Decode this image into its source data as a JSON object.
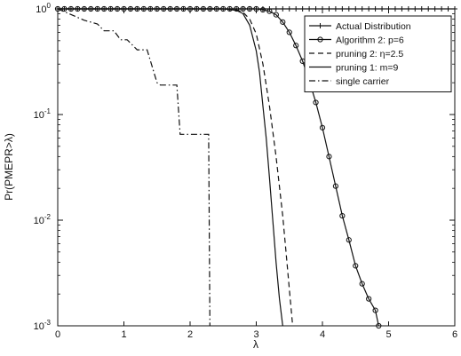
{
  "chart_data": {
    "type": "line",
    "xlabel": "λ",
    "ylabel": "Pr(PMEPR>λ)",
    "xlim": [
      0,
      6
    ],
    "ylim": [
      0.001,
      1
    ],
    "yscale": "log",
    "grid": false,
    "legend_position": "top-right",
    "x_ticks": [
      {
        "value": 0,
        "label": "0"
      },
      {
        "value": 1,
        "label": "1"
      },
      {
        "value": 2,
        "label": "2"
      },
      {
        "value": 3,
        "label": "3"
      },
      {
        "value": 4,
        "label": "4"
      },
      {
        "value": 5,
        "label": "5"
      },
      {
        "value": 6,
        "label": "6"
      }
    ],
    "y_ticks": [
      {
        "value": 1,
        "base": "10",
        "exp": "0"
      },
      {
        "value": 0.1,
        "base": "10",
        "exp": "-1"
      },
      {
        "value": 0.01,
        "base": "10",
        "exp": "-2"
      },
      {
        "value": 0.001,
        "base": "10",
        "exp": "-3"
      }
    ],
    "series": [
      {
        "name": "Actual Distribution",
        "style": "solid",
        "marker": "plus",
        "color": "#111111",
        "x": [
          0,
          0.1,
          0.2,
          0.3,
          0.4,
          0.5,
          0.6,
          0.7,
          0.8,
          0.9,
          1.0,
          1.1,
          1.2,
          1.3,
          1.4,
          1.5,
          1.6,
          1.7,
          1.8,
          1.9,
          2.0,
          2.1,
          2.2,
          2.3,
          2.4,
          2.5,
          2.6,
          2.7,
          2.8,
          2.9,
          3.0,
          3.1,
          3.2,
          3.3,
          3.4,
          3.5,
          3.6,
          3.7,
          3.8,
          3.9,
          4.0,
          4.1,
          4.2,
          4.3,
          4.4,
          4.5,
          4.6,
          4.7,
          4.8,
          4.9,
          5.0,
          5.1,
          5.2,
          5.3,
          5.4,
          5.5,
          5.6,
          5.7,
          5.8,
          5.9,
          6.0
        ],
        "y": [
          1,
          1,
          1,
          1,
          1,
          1,
          1,
          1,
          1,
          1,
          1,
          1,
          1,
          1,
          1,
          1,
          1,
          1,
          1,
          1,
          1,
          1,
          1,
          1,
          1,
          1,
          1,
          1,
          1,
          1,
          1,
          1,
          1,
          1,
          1,
          1,
          1,
          1,
          1,
          1,
          1,
          1,
          1,
          1,
          1,
          1,
          1,
          1,
          1,
          1,
          1,
          1,
          1,
          1,
          1,
          1,
          1,
          1,
          1,
          1,
          1
        ]
      },
      {
        "name": "Algorithm 2: p=6",
        "style": "solid",
        "marker": "circle",
        "color": "#111111",
        "x": [
          0,
          0.1,
          0.2,
          0.3,
          0.4,
          0.5,
          0.6,
          0.7,
          0.8,
          0.9,
          1.0,
          1.1,
          1.2,
          1.3,
          1.4,
          1.5,
          1.6,
          1.7,
          1.8,
          1.9,
          2.0,
          2.1,
          2.2,
          2.3,
          2.4,
          2.5,
          2.6,
          2.7,
          2.8,
          2.9,
          3.0,
          3.1,
          3.2,
          3.3,
          3.4,
          3.5,
          3.6,
          3.7,
          3.8,
          3.9,
          4.0,
          4.1,
          4.2,
          4.3,
          4.4,
          4.5,
          4.6,
          4.7,
          4.8,
          4.85
        ],
        "y": [
          1,
          1,
          1,
          1,
          1,
          1,
          1,
          1,
          1,
          1,
          1,
          1,
          1,
          1,
          1,
          1,
          1,
          1,
          1,
          1,
          1,
          1,
          1,
          1,
          1,
          1,
          1,
          1,
          1,
          1,
          1,
          0.98,
          0.95,
          0.88,
          0.75,
          0.6,
          0.45,
          0.32,
          0.21,
          0.13,
          0.075,
          0.04,
          0.021,
          0.011,
          0.0065,
          0.0037,
          0.0025,
          0.0018,
          0.0014,
          0.001
        ]
      },
      {
        "name": "pruning 2: η=2.5",
        "style": "dashed",
        "marker": "none",
        "color": "#111111",
        "x": [
          0,
          2.5,
          2.7,
          2.8,
          2.9,
          3.0,
          3.1,
          3.2,
          3.3,
          3.4,
          3.45,
          3.5,
          3.55
        ],
        "y": [
          1,
          1,
          0.98,
          0.93,
          0.8,
          0.58,
          0.3,
          0.12,
          0.04,
          0.011,
          0.005,
          0.0022,
          0.001
        ]
      },
      {
        "name": "pruning 1: m=9",
        "style": "solid",
        "marker": "none",
        "color": "#111111",
        "x": [
          0,
          2.5,
          2.7,
          2.8,
          2.9,
          3.0,
          3.05,
          3.1,
          3.15,
          3.2,
          3.25,
          3.3,
          3.35,
          3.4
        ],
        "y": [
          1,
          1,
          0.97,
          0.9,
          0.7,
          0.4,
          0.25,
          0.12,
          0.06,
          0.025,
          0.01,
          0.004,
          0.0018,
          0.001
        ]
      },
      {
        "name": "single carrier",
        "style": "dashdot",
        "marker": "none",
        "color": "#111111",
        "x": [
          0,
          0.4,
          0.6,
          0.7,
          0.85,
          0.95,
          1.05,
          1.2,
          1.35,
          1.5,
          1.55,
          1.8,
          1.85,
          2.28,
          2.3
        ],
        "y": [
          1,
          0.78,
          0.72,
          0.62,
          0.62,
          0.51,
          0.51,
          0.41,
          0.41,
          0.2,
          0.19,
          0.19,
          0.065,
          0.065,
          0.001
        ]
      }
    ]
  }
}
